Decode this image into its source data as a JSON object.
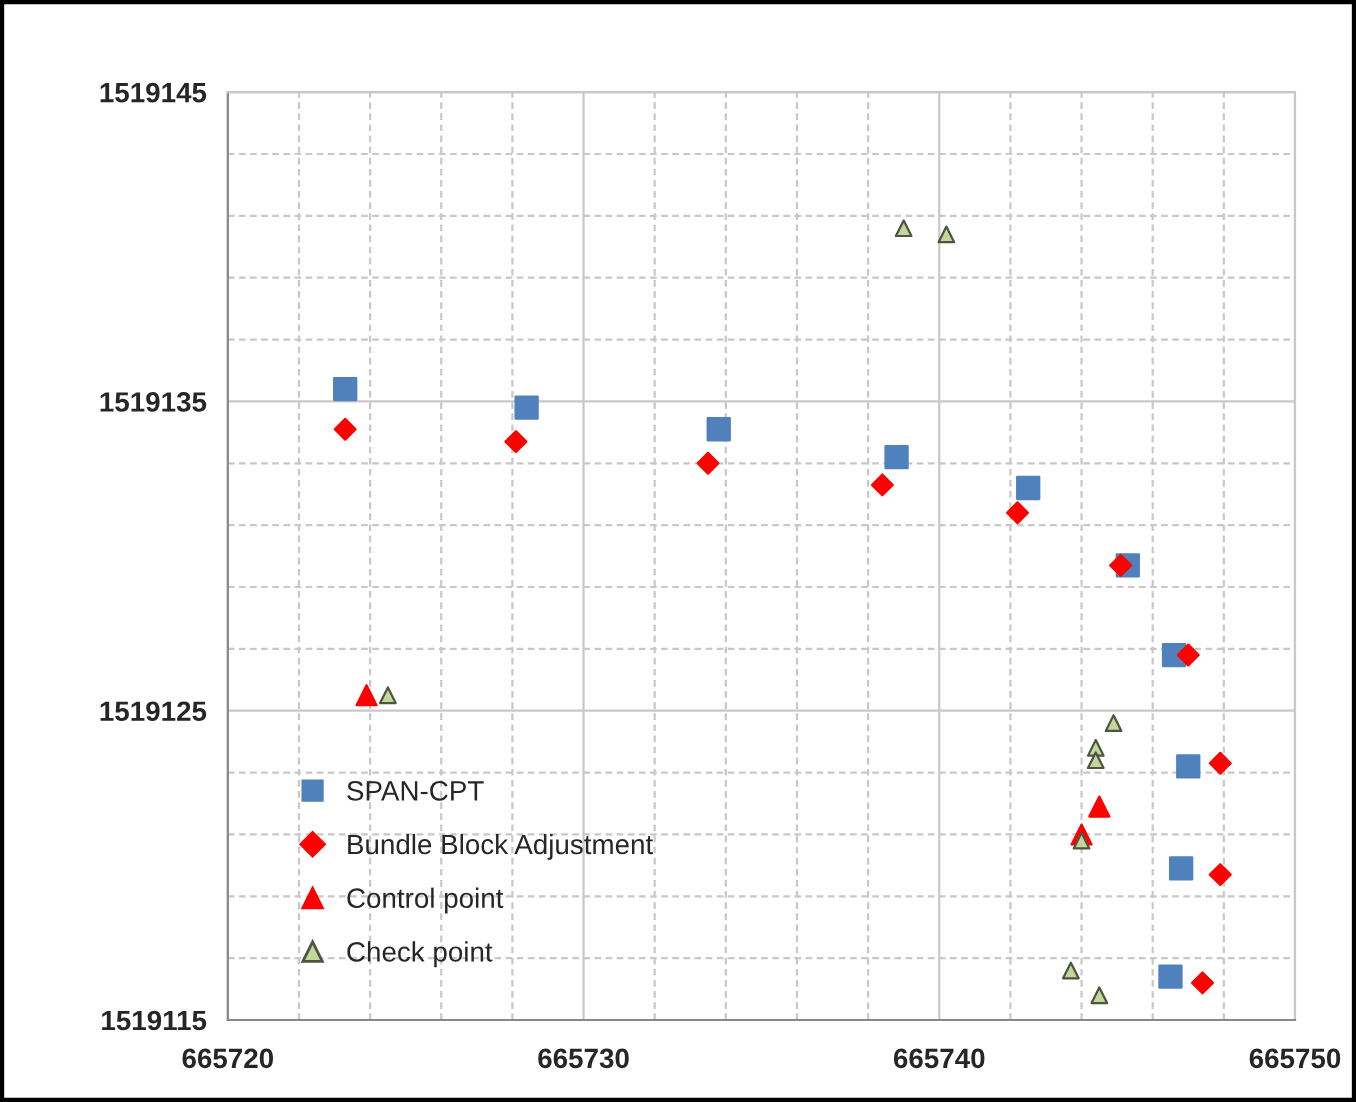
{
  "chart_data": {
    "type": "scatter",
    "xlim": [
      665720,
      665750
    ],
    "xticks": [
      665720,
      {
        "value": 665722,
        "label": null
      },
      {
        "value": 665724,
        "label": null
      },
      {
        "value": 665726,
        "label": null
      },
      {
        "value": 665728,
        "label": null
      },
      665730,
      {
        "value": 665732,
        "label": null
      },
      {
        "value": 665734,
        "label": null
      },
      {
        "value": 665736,
        "label": null
      },
      {
        "value": 665738,
        "label": null
      },
      665740,
      {
        "value": 665742,
        "label": null
      },
      {
        "value": 665744,
        "label": null
      },
      {
        "value": 665746,
        "label": null
      },
      {
        "value": 665748,
        "label": null
      },
      665750
    ],
    "ylim": [
      1519115,
      1519145
    ],
    "yticks": [
      1519115,
      {
        "value": 1519117,
        "label": null
      },
      {
        "value": 1519119,
        "label": null
      },
      {
        "value": 1519121,
        "label": null
      },
      {
        "value": 1519123,
        "label": null
      },
      1519125,
      {
        "value": 1519127,
        "label": null
      },
      {
        "value": 1519129,
        "label": null
      },
      {
        "value": 1519131,
        "label": null
      },
      {
        "value": 1519133,
        "label": null
      },
      1519135,
      {
        "value": 1519137,
        "label": null
      },
      {
        "value": 1519139,
        "label": null
      },
      {
        "value": 1519141,
        "label": null
      },
      {
        "value": 1519143,
        "label": null
      },
      1519145
    ],
    "grid": true,
    "legend": "bottom left",
    "series": [
      {
        "name": "SPAN-CPT",
        "color": "#4f81bd",
        "marker": "square",
        "x": [
          665723.3,
          665728.4,
          665733.8,
          665738.8,
          665742.5,
          665745.3,
          665746.6,
          665747.0,
          665746.8,
          665746.5
        ],
        "values": [
          1519135.4,
          1519134.8,
          1519134.1,
          1519133.2,
          1519132.2,
          1519129.7,
          1519126.8,
          1519123.2,
          1519119.9,
          1519116.4
        ]
      },
      {
        "name": "Bundle Block Adjustment",
        "color": "#ff0000",
        "marker": "diamond",
        "x": [
          665723.3,
          665728.1,
          665733.5,
          665738.4,
          665742.2,
          665745.1,
          665747.0,
          665747.9,
          665747.9,
          665747.4
        ],
        "values": [
          1519134.1,
          1519133.7,
          1519133.0,
          1519132.3,
          1519131.4,
          1519129.7,
          1519126.8,
          1519123.3,
          1519119.7,
          1519116.2
        ]
      },
      {
        "name": "Control point",
        "color": "#ff0000",
        "marker": "triangle",
        "x": [
          665723.9,
          665744.5,
          665744.0
        ],
        "values": [
          1519125.5,
          1519121.9,
          1519121.0
        ]
      },
      {
        "name": "Check point",
        "color": "#c3d69b",
        "marker": "triangle",
        "x": [
          665724.5,
          665739.0,
          665740.2,
          665744.9,
          665744.4,
          665744.4,
          665744.0,
          665743.7,
          665744.5
        ],
        "values": [
          1519125.5,
          1519140.6,
          1519140.4,
          1519124.6,
          1519123.8,
          1519123.4,
          1519120.8,
          1519116.6,
          1519115.8
        ]
      }
    ]
  }
}
